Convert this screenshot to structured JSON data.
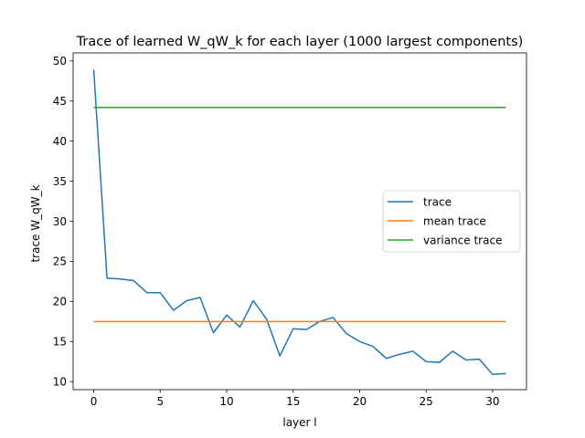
{
  "chart_data": {
    "type": "line",
    "title": "Trace of learned W_qW_k for each layer (1000 largest components)",
    "xlabel": "layer l",
    "ylabel": "trace W_qW_k",
    "xlim": [
      -1.55,
      32.55
    ],
    "ylim": [
      9.0,
      51.0
    ],
    "x_ticks": [
      0,
      5,
      10,
      15,
      20,
      25,
      30
    ],
    "y_ticks": [
      10,
      15,
      20,
      25,
      30,
      35,
      40,
      45,
      50
    ],
    "grid": false,
    "legend_position": "center-right",
    "series": [
      {
        "name": "trace",
        "color": "#1f77b4",
        "x": [
          0,
          1,
          2,
          3,
          4,
          5,
          6,
          7,
          8,
          9,
          10,
          11,
          12,
          13,
          14,
          15,
          16,
          17,
          18,
          19,
          20,
          21,
          22,
          23,
          24,
          25,
          26,
          27,
          28,
          29,
          30,
          31
        ],
        "y": [
          48.9,
          22.9,
          22.8,
          22.6,
          21.1,
          21.1,
          18.9,
          20.1,
          20.5,
          16.1,
          18.3,
          16.8,
          20.1,
          17.8,
          13.2,
          16.6,
          16.5,
          17.5,
          18.0,
          16.0,
          15.0,
          14.4,
          12.9,
          13.4,
          13.8,
          12.5,
          12.4,
          13.8,
          12.7,
          12.8,
          10.9,
          11.0
        ]
      },
      {
        "name": "mean trace",
        "color": "#ff7f0e",
        "x": [
          0,
          31
        ],
        "y": [
          17.5,
          17.5
        ]
      },
      {
        "name": "variance trace",
        "color": "#2ca02c",
        "x": [
          0,
          31
        ],
        "y": [
          44.2,
          44.2
        ]
      }
    ]
  }
}
